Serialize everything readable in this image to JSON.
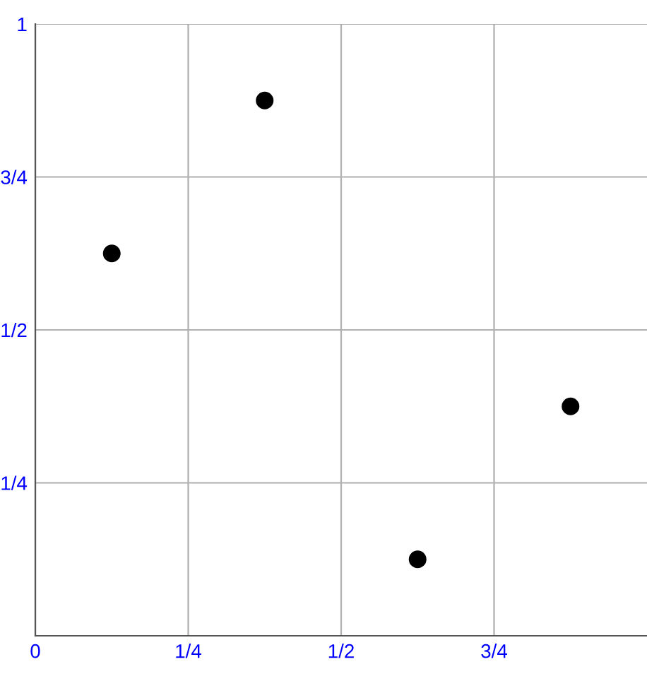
{
  "chart_data": {
    "type": "scatter",
    "x": [
      0.125,
      0.375,
      0.625,
      0.875
    ],
    "values": [
      0.625,
      0.875,
      0.125,
      0.375
    ],
    "color": "#000000",
    "marker": "circle",
    "xlim": [
      0,
      1
    ],
    "ylim": [
      0,
      1
    ],
    "xticks": [
      0,
      {
        "value": 0.25,
        "label": "1/4"
      },
      {
        "value": 0.5,
        "label": "1/2"
      },
      {
        "value": 0.75,
        "label": "3/4"
      }
    ],
    "yticks": [
      {
        "value": 0.25,
        "label": "1/4"
      },
      {
        "value": 0.5,
        "label": "1/2"
      },
      {
        "value": 0.75,
        "label": "3/4"
      },
      1
    ],
    "grid": true
  }
}
